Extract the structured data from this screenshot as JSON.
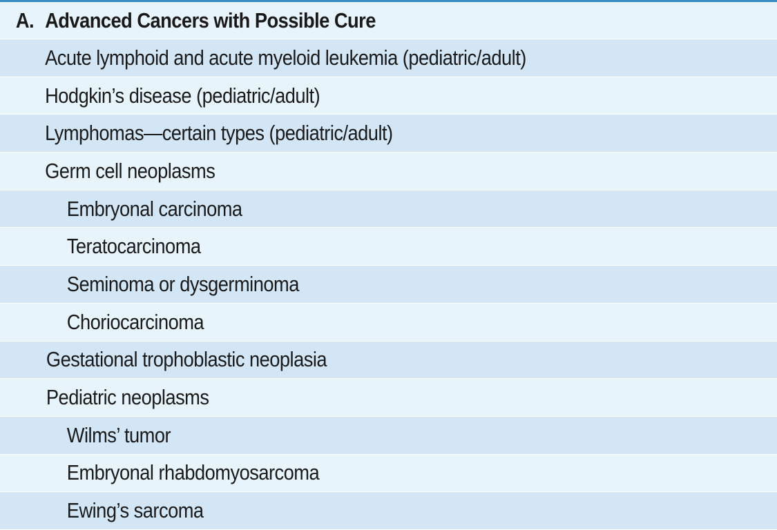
{
  "section": {
    "letter": "A.",
    "title": "Advanced Cancers with Possible Cure"
  },
  "rows": [
    {
      "label": "Acute lymphoid and acute myeloid leukemia (pediatric/adult)",
      "level": 1
    },
    {
      "label": "Hodgkin’s disease (pediatric/adult)",
      "level": 1
    },
    {
      "label": "Lymphomas—certain types (pediatric/adult)",
      "level": 1
    },
    {
      "label": "Germ cell neoplasms",
      "level": 1
    },
    {
      "label": "Embryonal carcinoma",
      "level": 2
    },
    {
      "label": "Teratocarcinoma",
      "level": 2
    },
    {
      "label": "Seminoma or dysgerminoma",
      "level": 2
    },
    {
      "label": "Choriocarcinoma",
      "level": 2
    },
    {
      "label": "Gestational trophoblastic neoplasia",
      "level": 1
    },
    {
      "label": "Pediatric neoplasms",
      "level": 1
    },
    {
      "label": "Wilms’ tumor",
      "level": 2
    },
    {
      "label": "Embryonal rhabdomyosarcoma",
      "level": 2
    },
    {
      "label": "Ewing’s sarcoma",
      "level": 2
    }
  ],
  "colors": {
    "top_rule": "#3b8cc4",
    "row_light": "#e8f4fb",
    "row_dark": "#d3e6f5"
  }
}
